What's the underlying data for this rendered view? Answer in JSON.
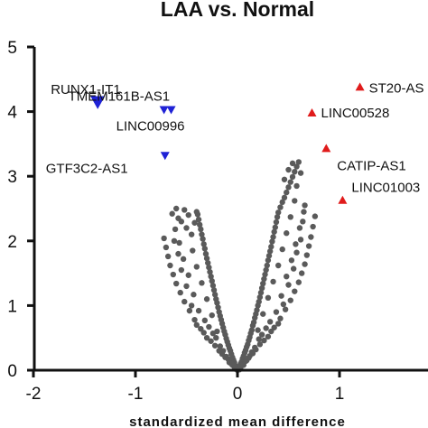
{
  "chart_data": {
    "type": "scatter",
    "title": "LAA vs. Normal",
    "xlabel": "standardized mean difference",
    "ylabel": "",
    "xlim": [
      -2,
      1.6
    ],
    "ylim": [
      0,
      5
    ],
    "x_ticks": [
      "-2",
      "-1",
      "0",
      "1"
    ],
    "y_ticks": [
      "0",
      "1",
      "2",
      "3",
      "4",
      "5"
    ],
    "grid": false,
    "legend": "none",
    "colors": {
      "background_points": "#5a5a5a",
      "down": "#1f22d6",
      "up": "#e01b1b",
      "axis": "#111111"
    },
    "highlighted": [
      {
        "label": "RUNX1-IT1",
        "x": -1.37,
        "y": 4.15,
        "direction": "down",
        "marker": "triangle-down",
        "size": "large"
      },
      {
        "label": "TMEM161B-AS1",
        "x": -0.65,
        "y": 4.03,
        "direction": "down",
        "marker": "triangle-down",
        "size": "small"
      },
      {
        "label": "LINC00996",
        "x": -0.72,
        "y": 4.03,
        "direction": "down",
        "marker": "triangle-down",
        "size": "small"
      },
      {
        "label": "GTF3C2-AS1",
        "x": -0.71,
        "y": 3.32,
        "direction": "down",
        "marker": "triangle-down",
        "size": "small"
      },
      {
        "label": "ST20-AS",
        "x": 1.2,
        "y": 4.38,
        "direction": "up",
        "marker": "triangle-up",
        "size": "small"
      },
      {
        "label": "LINC00528",
        "x": 0.73,
        "y": 3.98,
        "direction": "up",
        "marker": "triangle-up",
        "size": "small"
      },
      {
        "label": "CATIP-AS1",
        "x": 0.87,
        "y": 3.43,
        "direction": "up",
        "marker": "triangle-up",
        "size": "small"
      },
      {
        "label": "LINC01003",
        "x": 1.03,
        "y": 2.63,
        "direction": "up",
        "marker": "triangle-up",
        "size": "small"
      }
    ],
    "background_series": [
      {
        "x": 0.0,
        "y": 0.0
      },
      {
        "x": 0.01,
        "y": 0.03
      },
      {
        "x": -0.01,
        "y": 0.04
      },
      {
        "x": 0.02,
        "y": 0.06
      },
      {
        "x": -0.02,
        "y": 0.07
      },
      {
        "x": 0.03,
        "y": 0.1
      },
      {
        "x": -0.03,
        "y": 0.12
      },
      {
        "x": 0.04,
        "y": 0.13
      },
      {
        "x": -0.04,
        "y": 0.16
      },
      {
        "x": 0.05,
        "y": 0.18
      },
      {
        "x": -0.05,
        "y": 0.2
      },
      {
        "x": 0.06,
        "y": 0.22
      },
      {
        "x": -0.06,
        "y": 0.25
      },
      {
        "x": 0.07,
        "y": 0.27
      },
      {
        "x": -0.07,
        "y": 0.3
      },
      {
        "x": 0.08,
        "y": 0.31
      },
      {
        "x": -0.08,
        "y": 0.34
      },
      {
        "x": 0.09,
        "y": 0.36
      },
      {
        "x": -0.09,
        "y": 0.39
      },
      {
        "x": 0.1,
        "y": 0.4
      },
      {
        "x": -0.1,
        "y": 0.44
      },
      {
        "x": 0.11,
        "y": 0.46
      },
      {
        "x": -0.11,
        "y": 0.49
      },
      {
        "x": 0.12,
        "y": 0.51
      },
      {
        "x": -0.12,
        "y": 0.55
      },
      {
        "x": 0.13,
        "y": 0.57
      },
      {
        "x": -0.13,
        "y": 0.6
      },
      {
        "x": 0.14,
        "y": 0.62
      },
      {
        "x": -0.14,
        "y": 0.66
      },
      {
        "x": 0.15,
        "y": 0.69
      },
      {
        "x": -0.15,
        "y": 0.72
      },
      {
        "x": 0.16,
        "y": 0.74
      },
      {
        "x": -0.16,
        "y": 0.78
      },
      {
        "x": 0.17,
        "y": 0.81
      },
      {
        "x": -0.17,
        "y": 0.84
      },
      {
        "x": 0.18,
        "y": 0.87
      },
      {
        "x": -0.18,
        "y": 0.9
      },
      {
        "x": 0.19,
        "y": 0.93
      },
      {
        "x": -0.19,
        "y": 0.97
      },
      {
        "x": 0.2,
        "y": 1.0
      },
      {
        "x": -0.2,
        "y": 1.04
      },
      {
        "x": 0.21,
        "y": 1.06
      },
      {
        "x": -0.21,
        "y": 1.1
      },
      {
        "x": 0.22,
        "y": 1.13
      },
      {
        "x": -0.22,
        "y": 1.17
      },
      {
        "x": 0.23,
        "y": 1.2
      },
      {
        "x": -0.23,
        "y": 1.24
      },
      {
        "x": 0.24,
        "y": 1.27
      },
      {
        "x": -0.24,
        "y": 1.31
      },
      {
        "x": 0.25,
        "y": 1.34
      },
      {
        "x": -0.25,
        "y": 1.38
      },
      {
        "x": 0.26,
        "y": 1.41
      },
      {
        "x": -0.26,
        "y": 1.45
      },
      {
        "x": 0.27,
        "y": 1.48
      },
      {
        "x": -0.27,
        "y": 1.52
      },
      {
        "x": 0.28,
        "y": 1.55
      },
      {
        "x": -0.28,
        "y": 1.59
      },
      {
        "x": 0.29,
        "y": 1.62
      },
      {
        "x": -0.29,
        "y": 1.66
      },
      {
        "x": 0.3,
        "y": 1.7
      },
      {
        "x": -0.3,
        "y": 1.73
      },
      {
        "x": 0.31,
        "y": 1.77
      },
      {
        "x": -0.31,
        "y": 1.8
      },
      {
        "x": 0.32,
        "y": 1.84
      },
      {
        "x": -0.32,
        "y": 1.88
      },
      {
        "x": 0.33,
        "y": 1.91
      },
      {
        "x": -0.33,
        "y": 1.95
      },
      {
        "x": 0.34,
        "y": 1.99
      },
      {
        "x": -0.34,
        "y": 2.03
      },
      {
        "x": 0.35,
        "y": 2.06
      },
      {
        "x": -0.35,
        "y": 2.1
      },
      {
        "x": 0.36,
        "y": 2.14
      },
      {
        "x": -0.36,
        "y": 2.18
      },
      {
        "x": 0.37,
        "y": 2.21
      },
      {
        "x": -0.37,
        "y": 2.25
      },
      {
        "x": 0.38,
        "y": 2.29
      },
      {
        "x": -0.38,
        "y": 2.33
      },
      {
        "x": 0.39,
        "y": 2.37
      },
      {
        "x": -0.39,
        "y": 2.41
      },
      {
        "x": 0.4,
        "y": 2.44
      },
      {
        "x": 0.42,
        "y": 2.52
      },
      {
        "x": 0.44,
        "y": 2.6
      },
      {
        "x": 0.46,
        "y": 2.67
      },
      {
        "x": 0.48,
        "y": 2.75
      },
      {
        "x": 0.5,
        "y": 2.83
      },
      {
        "x": 0.52,
        "y": 2.91
      },
      {
        "x": 0.54,
        "y": 2.99
      },
      {
        "x": 0.56,
        "y": 3.07
      },
      {
        "x": 0.58,
        "y": 3.15
      },
      {
        "x": 0.6,
        "y": 3.22
      },
      {
        "x": -0.4,
        "y": 2.45
      },
      {
        "x": -0.48,
        "y": 2.4
      },
      {
        "x": -0.6,
        "y": 2.5
      },
      {
        "x": -0.55,
        "y": 2.3
      },
      {
        "x": -0.5,
        "y": 2.2
      },
      {
        "x": -0.45,
        "y": 2.1
      },
      {
        "x": -0.08,
        "y": 0.12
      },
      {
        "x": 0.08,
        "y": 0.14
      },
      {
        "x": -0.15,
        "y": 0.25
      },
      {
        "x": 0.15,
        "y": 0.26
      },
      {
        "x": -0.22,
        "y": 0.38
      },
      {
        "x": 0.22,
        "y": 0.4
      },
      {
        "x": -0.3,
        "y": 0.5
      },
      {
        "x": 0.3,
        "y": 0.52
      },
      {
        "x": -0.36,
        "y": 0.64
      },
      {
        "x": 0.36,
        "y": 0.66
      },
      {
        "x": -0.42,
        "y": 0.78
      },
      {
        "x": 0.42,
        "y": 0.8
      },
      {
        "x": -0.47,
        "y": 0.92
      },
      {
        "x": 0.47,
        "y": 0.94
      },
      {
        "x": -0.52,
        "y": 1.06
      },
      {
        "x": 0.52,
        "y": 1.08
      },
      {
        "x": -0.56,
        "y": 1.2
      },
      {
        "x": 0.56,
        "y": 1.22
      },
      {
        "x": -0.6,
        "y": 1.34
      },
      {
        "x": 0.6,
        "y": 1.36
      },
      {
        "x": -0.63,
        "y": 1.48
      },
      {
        "x": 0.63,
        "y": 1.5
      },
      {
        "x": -0.66,
        "y": 1.62
      },
      {
        "x": 0.66,
        "y": 1.64
      },
      {
        "x": -0.68,
        "y": 1.76
      },
      {
        "x": 0.68,
        "y": 1.78
      },
      {
        "x": -0.7,
        "y": 1.9
      },
      {
        "x": 0.7,
        "y": 1.92
      },
      {
        "x": -0.72,
        "y": 2.04
      },
      {
        "x": 0.72,
        "y": 2.06
      },
      {
        "x": 0.74,
        "y": 2.22
      },
      {
        "x": 0.76,
        "y": 2.38
      },
      {
        "x": -0.2,
        "y": 0.6
      },
      {
        "x": 0.2,
        "y": 0.62
      },
      {
        "x": -0.25,
        "y": 0.85
      },
      {
        "x": 0.25,
        "y": 0.87
      },
      {
        "x": -0.3,
        "y": 1.1
      },
      {
        "x": 0.3,
        "y": 1.12
      },
      {
        "x": -0.35,
        "y": 1.35
      },
      {
        "x": 0.35,
        "y": 1.37
      },
      {
        "x": -0.4,
        "y": 1.6
      },
      {
        "x": 0.4,
        "y": 1.62
      },
      {
        "x": -0.44,
        "y": 1.85
      },
      {
        "x": 0.44,
        "y": 1.87
      },
      {
        "x": 0.48,
        "y": 2.12
      },
      {
        "x": 0.52,
        "y": 2.37
      },
      {
        "x": 0.56,
        "y": 2.62
      },
      {
        "x": 0.58,
        "y": 2.85
      },
      {
        "x": -0.12,
        "y": 0.2
      },
      {
        "x": 0.12,
        "y": 0.22
      },
      {
        "x": -0.18,
        "y": 0.3
      },
      {
        "x": 0.18,
        "y": 0.32
      },
      {
        "x": -0.05,
        "y": 0.08
      },
      {
        "x": 0.05,
        "y": 0.09
      },
      {
        "x": -0.26,
        "y": 0.45
      },
      {
        "x": 0.26,
        "y": 0.46
      },
      {
        "x": -0.33,
        "y": 0.58
      },
      {
        "x": 0.33,
        "y": 0.6
      },
      {
        "x": -0.4,
        "y": 0.7
      },
      {
        "x": 0.4,
        "y": 0.72
      },
      {
        "x": -0.45,
        "y": 1.0
      },
      {
        "x": 0.45,
        "y": 1.02
      },
      {
        "x": -0.5,
        "y": 1.3
      },
      {
        "x": 0.5,
        "y": 1.32
      },
      {
        "x": -0.55,
        "y": 1.55
      },
      {
        "x": 0.55,
        "y": 1.57
      },
      {
        "x": -0.58,
        "y": 1.8
      },
      {
        "x": 0.58,
        "y": 1.82
      },
      {
        "x": -0.62,
        "y": 2.0
      },
      {
        "x": 0.62,
        "y": 2.02
      },
      {
        "x": 0.64,
        "y": 2.3
      },
      {
        "x": 0.66,
        "y": 2.55
      },
      {
        "x": 0.5,
        "y": 3.1
      },
      {
        "x": 0.54,
        "y": 3.2
      },
      {
        "x": 0.46,
        "y": 2.95
      },
      {
        "x": 0.62,
        "y": 3.05
      },
      {
        "x": -0.64,
        "y": 2.42
      },
      {
        "x": -0.52,
        "y": 2.48
      },
      {
        "x": -0.58,
        "y": 2.35
      },
      {
        "x": -0.42,
        "y": 2.28
      },
      {
        "x": 0.0,
        "y": 0.02
      },
      {
        "x": 0.02,
        "y": 0.01
      },
      {
        "x": -0.02,
        "y": 0.02
      },
      {
        "x": 0.03,
        "y": 0.04
      },
      {
        "x": -0.03,
        "y": 0.05
      },
      {
        "x": 0.06,
        "y": 0.08
      },
      {
        "x": -0.06,
        "y": 0.1
      },
      {
        "x": 0.09,
        "y": 0.15
      },
      {
        "x": -0.09,
        "y": 0.17
      },
      {
        "x": 0.11,
        "y": 0.19
      },
      {
        "x": -0.11,
        "y": 0.21
      },
      {
        "x": 0.14,
        "y": 0.28
      },
      {
        "x": -0.14,
        "y": 0.3
      },
      {
        "x": 0.17,
        "y": 0.35
      },
      {
        "x": -0.17,
        "y": 0.37
      },
      {
        "x": 0.21,
        "y": 0.48
      },
      {
        "x": -0.21,
        "y": 0.5
      },
      {
        "x": 0.24,
        "y": 0.55
      },
      {
        "x": -0.24,
        "y": 0.57
      },
      {
        "x": 0.28,
        "y": 0.65
      },
      {
        "x": -0.28,
        "y": 0.67
      },
      {
        "x": 0.32,
        "y": 0.75
      },
      {
        "x": -0.32,
        "y": 0.77
      },
      {
        "x": 0.38,
        "y": 0.9
      },
      {
        "x": -0.38,
        "y": 0.92
      },
      {
        "x": 0.43,
        "y": 1.15
      },
      {
        "x": -0.43,
        "y": 1.17
      },
      {
        "x": 0.48,
        "y": 1.45
      },
      {
        "x": -0.48,
        "y": 1.47
      },
      {
        "x": 0.53,
        "y": 1.7
      },
      {
        "x": -0.53,
        "y": 1.72
      },
      {
        "x": 0.57,
        "y": 1.95
      },
      {
        "x": -0.57,
        "y": 1.97
      },
      {
        "x": 0.61,
        "y": 2.2
      },
      {
        "x": -0.61,
        "y": 2.18
      },
      {
        "x": 0.65,
        "y": 2.45
      }
    ]
  }
}
